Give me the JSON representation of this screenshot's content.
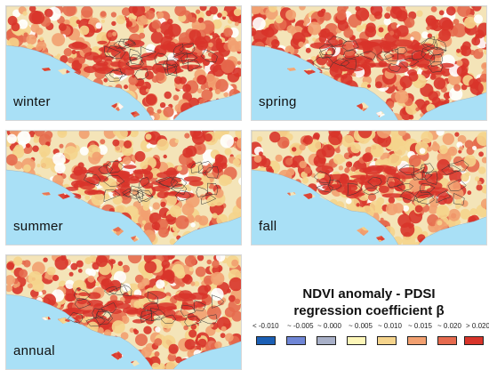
{
  "panels": [
    {
      "id": "winter",
      "label": "winter",
      "intensity": 0.72
    },
    {
      "id": "spring",
      "label": "spring",
      "intensity": 0.78
    },
    {
      "id": "summer",
      "label": "summer",
      "intensity": 0.45
    },
    {
      "id": "fall",
      "label": "fall",
      "intensity": 0.55
    },
    {
      "id": "annual",
      "label": "annual",
      "intensity": 0.62
    }
  ],
  "legend": {
    "title_line1": "NDVI anomaly - PDSI",
    "title_line2": "regression coefficient β",
    "labels": [
      "< -0.010",
      "~ -0.005",
      "~ 0.000",
      "~ 0.005",
      "~ 0.010",
      "~ 0.015",
      "~ 0.020",
      "> 0.020"
    ],
    "colors": [
      "#1b5fb5",
      "#6f86d6",
      "#a8b0c8",
      "#fdf6b8",
      "#f5d48c",
      "#f2a070",
      "#e66a4e",
      "#d8342a"
    ]
  },
  "map_colors": {
    "ocean": "#a9e0f6",
    "land_base": "#f4e4b8",
    "red_dark": "#d8342a",
    "red_mid": "#e66a4e",
    "orange": "#f2a070",
    "tan": "#f5d48c",
    "white": "#ffffff",
    "outline": "#333333"
  }
}
